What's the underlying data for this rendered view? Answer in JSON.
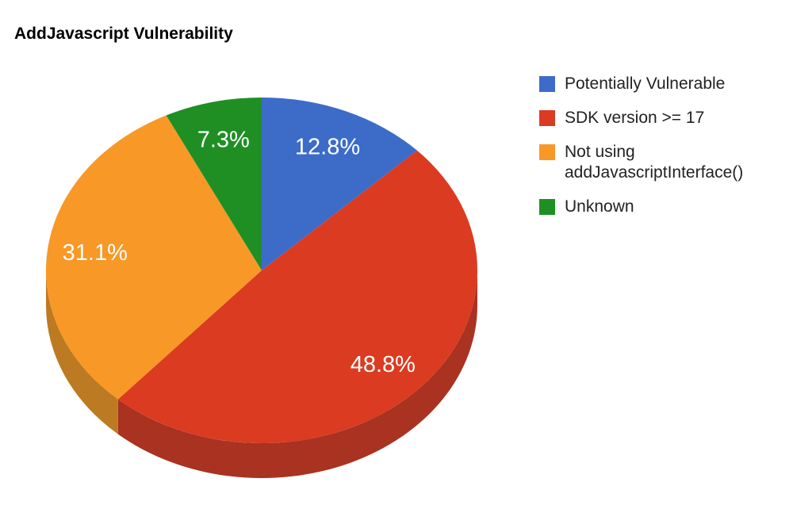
{
  "chart_data": {
    "type": "pie",
    "is3D": true,
    "title": "AddJavascript Vulnerability",
    "unit": "percent",
    "start_angle_deg": 0,
    "direction": "clockwise",
    "legend_position": "right",
    "background_color": "#FFFFFF",
    "title_color": "#000000",
    "legend_text_color": "#222222",
    "label_color": "#FFFFFF",
    "slices": [
      {
        "label": "Potentially Vulnerable",
        "value": 12.8,
        "display": "12.8%",
        "color": "#3C6CC8",
        "side_color": "#2E529B"
      },
      {
        "label": "SDK version >= 17",
        "value": 48.8,
        "display": "48.8%",
        "color": "#DB3B21",
        "side_color": "#A93221"
      },
      {
        "label": "Not using addJavascriptInterface()",
        "value": 31.1,
        "display": "31.1%",
        "color": "#F89827",
        "side_color": "#BC7A22"
      },
      {
        "label": "Unknown",
        "value": 7.3,
        "display": "7.3%",
        "color": "#1F8F24",
        "side_color": "#176B1B"
      }
    ]
  }
}
